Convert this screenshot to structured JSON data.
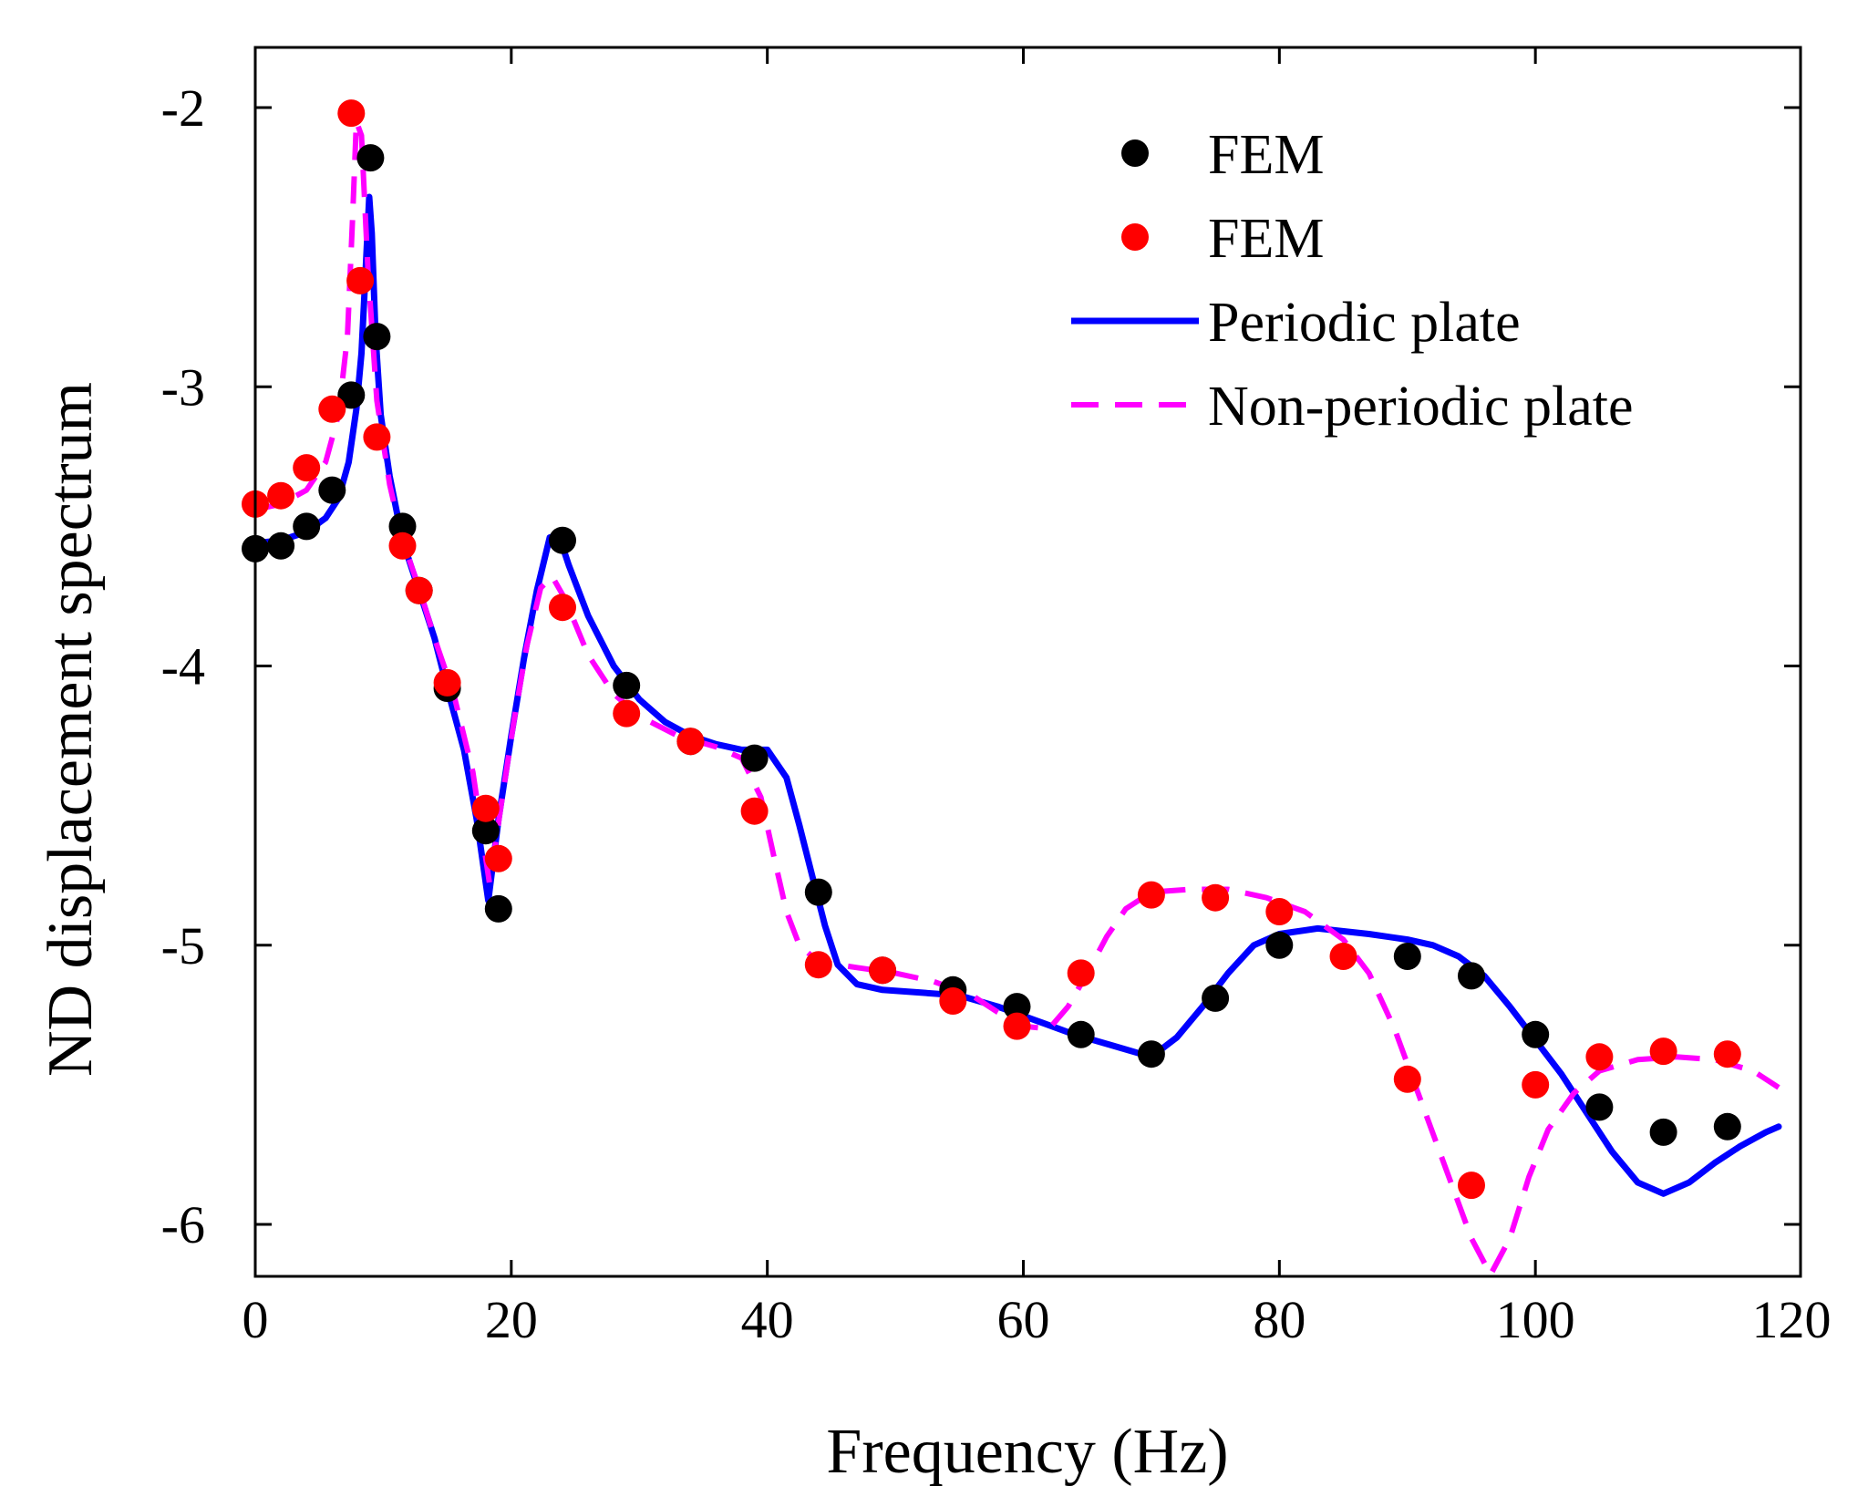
{
  "chart_data": {
    "type": "line",
    "title": "",
    "xlabel": "Frequency (Hz)",
    "ylabel": "ND displacement spectrum",
    "xlim": [
      0,
      120
    ],
    "ylim": [
      -6.2,
      -1.8
    ],
    "xticks": [
      0,
      20,
      40,
      60,
      80,
      100,
      120
    ],
    "xtick_labels": [
      "0",
      "20",
      "40",
      "60",
      "80",
      "100",
      "120"
    ],
    "yticks": [
      -2,
      -3,
      -4,
      -5,
      -6
    ],
    "ytick_labels": [
      "-2",
      "-3",
      "-4",
      "-5",
      "-6"
    ],
    "grid": false,
    "legend_position": "top-right",
    "series": [
      {
        "name": "FEM",
        "kind": "scatter",
        "color": "#000000",
        "points": [
          [
            0,
            -3.58
          ],
          [
            2,
            -3.57
          ],
          [
            4,
            -3.5
          ],
          [
            6,
            -3.37
          ],
          [
            7.5,
            -3.03
          ],
          [
            9,
            -2.18
          ],
          [
            9.5,
            -2.82
          ],
          [
            11.5,
            -3.5
          ],
          [
            12.8,
            -3.73
          ],
          [
            15,
            -4.08
          ],
          [
            18,
            -4.59
          ],
          [
            19,
            -4.87
          ],
          [
            24,
            -3.55
          ],
          [
            29,
            -4.07
          ],
          [
            34,
            -4.27
          ],
          [
            39,
            -4.33
          ],
          [
            44,
            -4.81
          ],
          [
            49,
            -5.09
          ],
          [
            54.5,
            -5.16
          ],
          [
            59.5,
            -5.22
          ],
          [
            64.5,
            -5.32
          ],
          [
            70,
            -5.39
          ],
          [
            75,
            -5.19
          ],
          [
            80,
            -5.0
          ],
          [
            90,
            -5.04
          ],
          [
            95,
            -5.11
          ],
          [
            100,
            -5.32
          ],
          [
            105,
            -5.58
          ],
          [
            110,
            -5.67
          ],
          [
            115,
            -5.65
          ]
        ]
      },
      {
        "name": "FEM",
        "kind": "scatter",
        "color": "#ff0000",
        "points": [
          [
            0,
            -3.42
          ],
          [
            2,
            -3.39
          ],
          [
            4,
            -3.29
          ],
          [
            6,
            -3.08
          ],
          [
            7.5,
            -2.02
          ],
          [
            8.2,
            -2.62
          ],
          [
            9.5,
            -3.18
          ],
          [
            11.5,
            -3.57
          ],
          [
            12.8,
            -3.73
          ],
          [
            15,
            -4.06
          ],
          [
            18,
            -4.51
          ],
          [
            19,
            -4.69
          ],
          [
            24,
            -3.79
          ],
          [
            29,
            -4.17
          ],
          [
            34,
            -4.27
          ],
          [
            39,
            -4.52
          ],
          [
            44,
            -5.07
          ],
          [
            49,
            -5.09
          ],
          [
            54.5,
            -5.2
          ],
          [
            59.5,
            -5.29
          ],
          [
            64.5,
            -5.1
          ],
          [
            70,
            -4.82
          ],
          [
            75,
            -4.83
          ],
          [
            80,
            -4.88
          ],
          [
            85,
            -5.04
          ],
          [
            90,
            -5.48
          ],
          [
            95,
            -5.86
          ],
          [
            100,
            -5.5
          ],
          [
            105,
            -5.4
          ],
          [
            110,
            -5.38
          ],
          [
            115,
            -5.39
          ]
        ]
      },
      {
        "name": "Periodic plate",
        "kind": "line",
        "dash": "solid",
        "color": "#0000ff",
        "points": [
          [
            0,
            -3.56
          ],
          [
            2,
            -3.55
          ],
          [
            4,
            -3.52
          ],
          [
            5.5,
            -3.47
          ],
          [
            6.5,
            -3.4
          ],
          [
            7.3,
            -3.27
          ],
          [
            7.9,
            -3.08
          ],
          [
            8.3,
            -2.88
          ],
          [
            8.6,
            -2.6
          ],
          [
            8.9,
            -2.32
          ],
          [
            9.1,
            -2.45
          ],
          [
            9.4,
            -2.82
          ],
          [
            9.8,
            -3.1
          ],
          [
            10.5,
            -3.32
          ],
          [
            11.5,
            -3.55
          ],
          [
            12.8,
            -3.73
          ],
          [
            14,
            -3.9
          ],
          [
            15,
            -4.08
          ],
          [
            16.3,
            -4.3
          ],
          [
            17.3,
            -4.55
          ],
          [
            18.2,
            -4.84
          ],
          [
            19,
            -4.55
          ],
          [
            20,
            -4.25
          ],
          [
            21,
            -3.97
          ],
          [
            22,
            -3.73
          ],
          [
            23,
            -3.54
          ],
          [
            23.7,
            -3.53
          ],
          [
            24.5,
            -3.64
          ],
          [
            26,
            -3.82
          ],
          [
            28,
            -4.0
          ],
          [
            30,
            -4.12
          ],
          [
            32,
            -4.2
          ],
          [
            34,
            -4.25
          ],
          [
            36,
            -4.28
          ],
          [
            38,
            -4.3
          ],
          [
            40,
            -4.3
          ],
          [
            41.5,
            -4.4
          ],
          [
            42.5,
            -4.57
          ],
          [
            43.5,
            -4.75
          ],
          [
            44.5,
            -4.93
          ],
          [
            45.5,
            -5.07
          ],
          [
            47,
            -5.14
          ],
          [
            49,
            -5.16
          ],
          [
            52,
            -5.17
          ],
          [
            55,
            -5.18
          ],
          [
            58,
            -5.22
          ],
          [
            61,
            -5.27
          ],
          [
            64,
            -5.32
          ],
          [
            67,
            -5.36
          ],
          [
            70,
            -5.4
          ],
          [
            72,
            -5.33
          ],
          [
            74,
            -5.22
          ],
          [
            76,
            -5.1
          ],
          [
            78,
            -5.0
          ],
          [
            80,
            -4.96
          ],
          [
            83,
            -4.94
          ],
          [
            87,
            -4.96
          ],
          [
            90,
            -4.98
          ],
          [
            92,
            -5.0
          ],
          [
            94,
            -5.04
          ],
          [
            96,
            -5.11
          ],
          [
            98,
            -5.22
          ],
          [
            100,
            -5.34
          ],
          [
            102,
            -5.46
          ],
          [
            104,
            -5.6
          ],
          [
            106,
            -5.74
          ],
          [
            108,
            -5.85
          ],
          [
            110,
            -5.89
          ],
          [
            112,
            -5.85
          ],
          [
            114,
            -5.78
          ],
          [
            116,
            -5.72
          ],
          [
            118,
            -5.67
          ],
          [
            119,
            -5.65
          ]
        ]
      },
      {
        "name": "Non-periodic plate",
        "kind": "line",
        "dash": "dashed",
        "color": "#ff00ff",
        "points": [
          [
            0,
            -3.44
          ],
          [
            2,
            -3.42
          ],
          [
            4,
            -3.37
          ],
          [
            5.5,
            -3.27
          ],
          [
            6.5,
            -3.1
          ],
          [
            7.2,
            -2.82
          ],
          [
            7.6,
            -2.4
          ],
          [
            7.9,
            -2.05
          ],
          [
            8.3,
            -2.1
          ],
          [
            8.8,
            -2.58
          ],
          [
            9.5,
            -3.05
          ],
          [
            10.5,
            -3.35
          ],
          [
            11.5,
            -3.55
          ],
          [
            12.8,
            -3.72
          ],
          [
            14,
            -3.9
          ],
          [
            15.5,
            -4.1
          ],
          [
            17,
            -4.38
          ],
          [
            18.3,
            -4.78
          ],
          [
            19.2,
            -4.5
          ],
          [
            20.2,
            -4.2
          ],
          [
            21.2,
            -3.93
          ],
          [
            22.3,
            -3.72
          ],
          [
            23.2,
            -3.68
          ],
          [
            24.2,
            -3.76
          ],
          [
            26,
            -3.96
          ],
          [
            28,
            -4.1
          ],
          [
            30,
            -4.18
          ],
          [
            33,
            -4.25
          ],
          [
            36,
            -4.29
          ],
          [
            38,
            -4.33
          ],
          [
            39.5,
            -4.47
          ],
          [
            40.5,
            -4.68
          ],
          [
            41.5,
            -4.88
          ],
          [
            42.5,
            -5.0
          ],
          [
            44,
            -5.06
          ],
          [
            47,
            -5.08
          ],
          [
            50,
            -5.1
          ],
          [
            53,
            -5.13
          ],
          [
            56,
            -5.18
          ],
          [
            58,
            -5.24
          ],
          [
            60,
            -5.29
          ],
          [
            62,
            -5.3
          ],
          [
            63.5,
            -5.22
          ],
          [
            65,
            -5.1
          ],
          [
            66.5,
            -4.97
          ],
          [
            68,
            -4.87
          ],
          [
            70,
            -4.81
          ],
          [
            73,
            -4.8
          ],
          [
            76,
            -4.8
          ],
          [
            79,
            -4.83
          ],
          [
            82,
            -4.88
          ],
          [
            85,
            -4.98
          ],
          [
            87,
            -5.1
          ],
          [
            89,
            -5.3
          ],
          [
            91,
            -5.55
          ],
          [
            93,
            -5.8
          ],
          [
            95,
            -6.05
          ],
          [
            96.5,
            -6.18
          ],
          [
            98,
            -6.05
          ],
          [
            99.5,
            -5.83
          ],
          [
            101,
            -5.66
          ],
          [
            103,
            -5.53
          ],
          [
            105,
            -5.45
          ],
          [
            108,
            -5.41
          ],
          [
            111,
            -5.4
          ],
          [
            114,
            -5.41
          ],
          [
            117,
            -5.45
          ],
          [
            119,
            -5.51
          ]
        ]
      }
    ],
    "legend": [
      {
        "label": "FEM",
        "marker": "dot",
        "color": "#000000"
      },
      {
        "label": "FEM",
        "marker": "dot",
        "color": "#ff0000"
      },
      {
        "label": "Periodic plate",
        "marker": "solid-line",
        "color": "#0000ff"
      },
      {
        "label": "Non-periodic plate",
        "marker": "dashed-line",
        "color": "#ff00ff"
      }
    ]
  }
}
